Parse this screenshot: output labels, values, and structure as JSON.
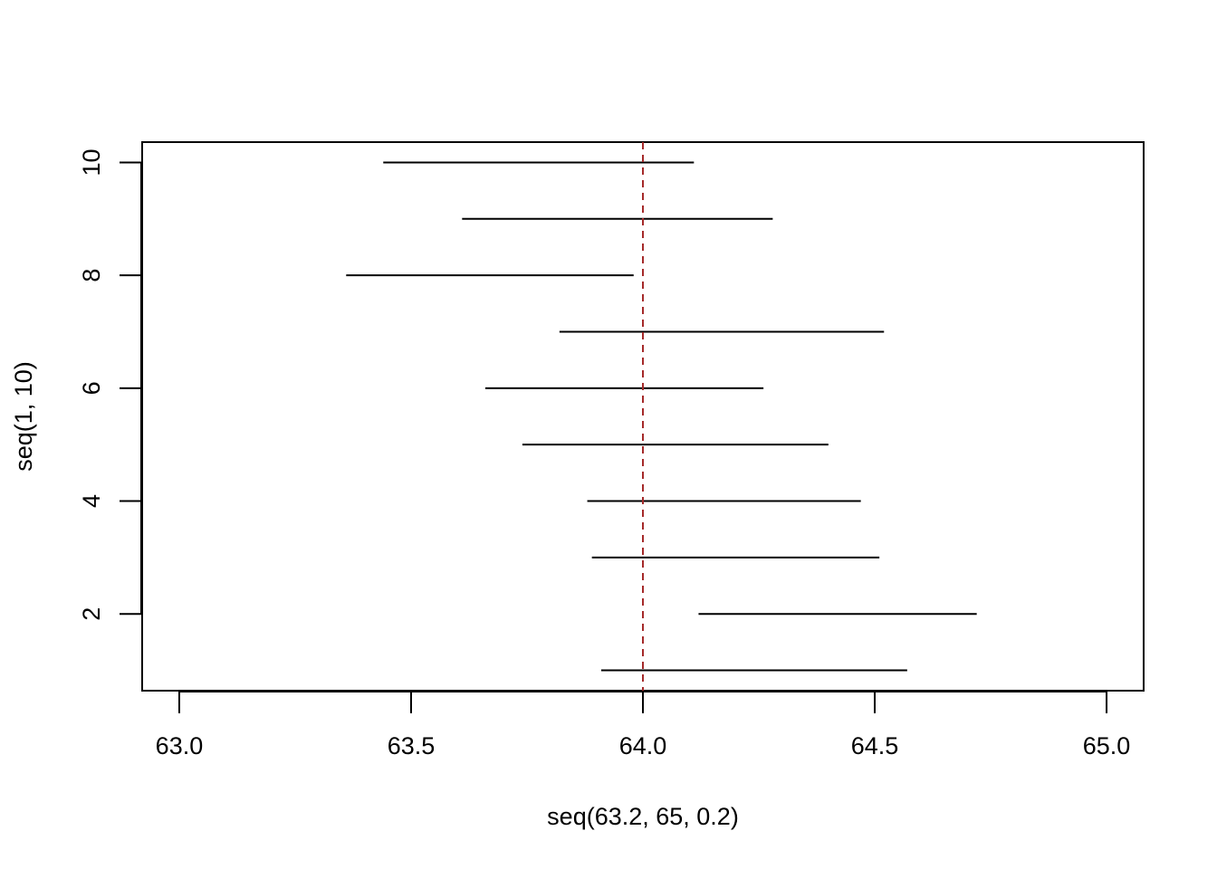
{
  "chart_data": {
    "type": "interval",
    "title": "",
    "xlabel": "seq(63.2, 65, 0.2)",
    "ylabel": "seq(1, 10)",
    "xlim": [
      62.92,
      65.08
    ],
    "ylim": [
      0.64,
      10.36
    ],
    "x_ticks": [
      63.0,
      63.5,
      64.0,
      64.5,
      65.0
    ],
    "x_tick_labels": [
      "63.0",
      "63.5",
      "64.0",
      "64.5",
      "65.0"
    ],
    "y_ticks": [
      2,
      4,
      6,
      8,
      10
    ],
    "y_tick_labels": [
      "2",
      "4",
      "6",
      "8",
      "10"
    ],
    "grid": false,
    "intervals": [
      {
        "y": 1,
        "lower": 63.91,
        "upper": 64.57
      },
      {
        "y": 2,
        "lower": 64.12,
        "upper": 64.72
      },
      {
        "y": 3,
        "lower": 63.89,
        "upper": 64.51
      },
      {
        "y": 4,
        "lower": 63.88,
        "upper": 64.47
      },
      {
        "y": 5,
        "lower": 63.74,
        "upper": 64.4
      },
      {
        "y": 6,
        "lower": 63.66,
        "upper": 64.26
      },
      {
        "y": 7,
        "lower": 63.82,
        "upper": 64.52
      },
      {
        "y": 8,
        "lower": 63.36,
        "upper": 63.98
      },
      {
        "y": 9,
        "lower": 63.61,
        "upper": 64.28
      },
      {
        "y": 10,
        "lower": 63.44,
        "upper": 64.11
      }
    ],
    "reference_line": {
      "x": 64.0,
      "color": "#A52A2A",
      "style": "dashed"
    },
    "line_color": "#000000"
  }
}
